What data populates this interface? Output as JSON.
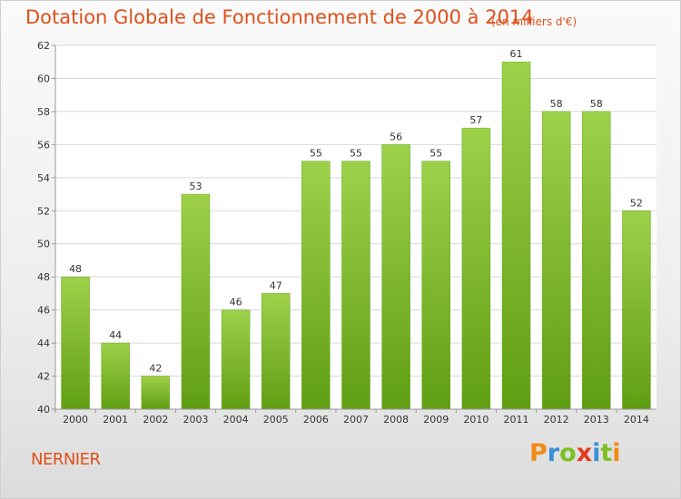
{
  "title": "Dotation Globale de Fonctionnement de 2000 à 2014",
  "unit_note": "(en milliers d'€)",
  "commune": "NERNIER",
  "brand": {
    "letters": [
      "P",
      "r",
      "o",
      "x",
      "i",
      "t",
      "i"
    ],
    "colors": [
      "#f08a16",
      "#3a8fd8",
      "#7cc021",
      "#e23a1e",
      "#3a8fd8",
      "#7cc021",
      "#f08a16"
    ]
  },
  "colors": {
    "accent": "#e0501a",
    "bar_light": "#9ed14a",
    "bar_dark": "#5f9e12",
    "grid": "#d8d8d8"
  },
  "chart_data": {
    "type": "bar",
    "categories": [
      "2000",
      "2001",
      "2002",
      "2003",
      "2004",
      "2005",
      "2006",
      "2007",
      "2008",
      "2009",
      "2010",
      "2011",
      "2012",
      "2013",
      "2014"
    ],
    "values": [
      48,
      44,
      42,
      53,
      46,
      47,
      55,
      55,
      56,
      55,
      57,
      61,
      58,
      58,
      52
    ],
    "data_labels": [
      "48",
      "44",
      "42",
      "53",
      "46",
      "47",
      "55",
      "55",
      "56",
      "55",
      "57",
      "61",
      "58",
      "58",
      "52"
    ],
    "yticks": [
      "40",
      "42",
      "44",
      "46",
      "48",
      "50",
      "52",
      "54",
      "56",
      "58",
      "60",
      "62"
    ],
    "ylim": [
      40,
      62
    ],
    "grid": true,
    "legend": "none"
  }
}
